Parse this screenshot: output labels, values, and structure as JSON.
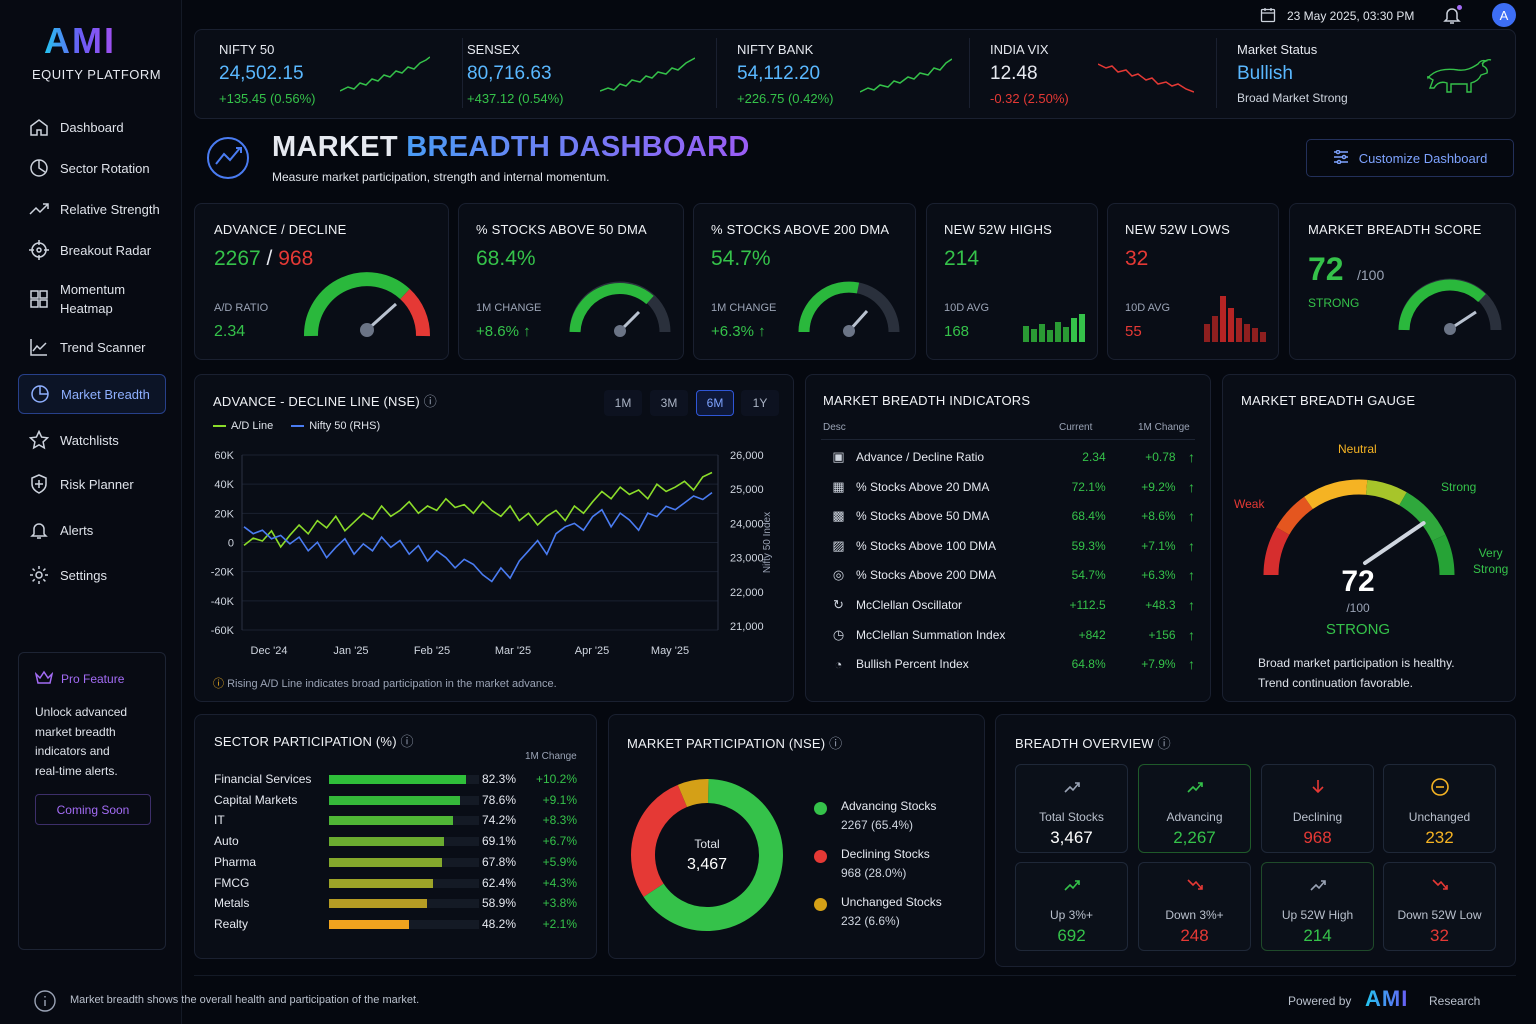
{
  "brand": {
    "logo": "AMI",
    "subtitle": "EQUITY PLATFORM"
  },
  "topbar": {
    "datetime": "23 May 2025, 03:30 PM",
    "avatar": "A"
  },
  "sidebar": {
    "items": [
      {
        "label": "Dashboard"
      },
      {
        "label": "Sector Rotation"
      },
      {
        "label": "Relative Strength"
      },
      {
        "label": "Breakout Radar"
      },
      {
        "label": "Momentum"
      },
      {
        "label": "Trend Scanner"
      },
      {
        "label": "Market Breadth"
      },
      {
        "label": "Watchlists"
      },
      {
        "label": "Risk Planner"
      },
      {
        "label": "Alerts"
      },
      {
        "label": "Settings"
      }
    ],
    "momentum_line2": "Heatmap",
    "pro": {
      "title": "Pro Feature",
      "line1": "Unlock advanced",
      "line2": "market breadth",
      "line3": "indicators and",
      "line4": "real-time alerts.",
      "button": "Coming Soon"
    }
  },
  "ticker": [
    {
      "name": "NIFTY 50",
      "value": "24,502.15",
      "change": "+135.45 (0.56%)"
    },
    {
      "name": "SENSEX",
      "value": "80,716.63",
      "change": "+437.12 (0.54%)"
    },
    {
      "name": "NIFTY BANK",
      "value": "54,112.20",
      "change": "+226.75 (0.42%)"
    },
    {
      "name": "INDIA VIX",
      "value": "12.48",
      "change": "-0.32 (2.50%)"
    }
  ],
  "market_status": {
    "label": "Market Status",
    "value": "Bullish",
    "note": "Broad Market Strong"
  },
  "header": {
    "title_part1": "MARKET",
    "title_part2": "BREADTH DASHBOARD",
    "subtitle": "Measure market participation, strength and internal momentum.",
    "customize": "Customize Dashboard"
  },
  "kpis": {
    "ad": {
      "title": "ADVANCE / DECLINE",
      "adv": "2267",
      "sep": " / ",
      "dec": "968",
      "ratio_label": "A/D RATIO",
      "ratio": "2.34"
    },
    "dma50": {
      "title": "% STOCKS ABOVE 50 DMA",
      "value": "68.4%",
      "chg_label": "1M CHANGE",
      "chg": "+8.6%"
    },
    "dma200": {
      "title": "% STOCKS ABOVE 200 DMA",
      "value": "54.7%",
      "chg_label": "1M CHANGE",
      "chg": "+6.3%"
    },
    "highs": {
      "title": "NEW 52W HIGHS",
      "value": "214",
      "avg_label": "10D AVG",
      "avg": "168"
    },
    "lows": {
      "title": "NEW 52W LOWS",
      "value": "32",
      "avg_label": "10D AVG",
      "avg": "55"
    },
    "score": {
      "title": "MARKET BREADTH SCORE",
      "value": "72",
      "of": "/100",
      "label": "STRONG"
    }
  },
  "adline": {
    "title": "ADVANCE - DECLINE LINE (NSE)",
    "ranges": [
      "1M",
      "3M",
      "6M",
      "1Y"
    ],
    "active_range": "6M",
    "note": "Rising A/D Line indicates broad participation in the market advance."
  },
  "chart_data": {
    "type": "line",
    "xlabel": "",
    "ylabel": "",
    "y2label": "Nifty 50 Index",
    "x_ticks": [
      "Dec '24",
      "Jan '25",
      "Feb '25",
      "Mar '25",
      "Apr '25",
      "May '25"
    ],
    "y_ticks": [
      "60K",
      "40K",
      "20K",
      "0",
      "-20K",
      "-40K",
      "-60K"
    ],
    "y2_ticks": [
      "26,000",
      "25,000",
      "24,000",
      "23,000",
      "22,000",
      "21,000"
    ],
    "ylim": [
      -60000,
      60000
    ],
    "y2lim": [
      21000,
      26000
    ],
    "series": [
      {
        "name": "A/D Line",
        "color": "#8bdc2a",
        "axis": "left",
        "values": [
          -2000,
          3000,
          1000,
          8000,
          -3000,
          5000,
          12000,
          6000,
          15000,
          10000,
          18000,
          8000,
          14000,
          20000,
          16000,
          25000,
          18000,
          22000,
          28000,
          20000,
          25000,
          22000,
          30000,
          24000,
          26000,
          20000,
          28000,
          22000,
          18000,
          25000,
          15000,
          20000,
          12000,
          18000,
          22000,
          15000,
          25000,
          20000,
          28000,
          35000,
          30000,
          38000,
          33000,
          36000,
          30000,
          40000,
          35000,
          38000,
          42000,
          36000,
          45000,
          48000
        ]
      },
      {
        "name": "Nifty 50 (RHS)",
        "color": "#4a7cf2",
        "axis": "right",
        "values": [
          23900,
          23700,
          23800,
          23550,
          23650,
          23400,
          23600,
          23200,
          23450,
          23000,
          23300,
          23550,
          23100,
          23400,
          23200,
          23600,
          23300,
          23500,
          23100,
          23350,
          22900,
          23200,
          23000,
          22700,
          22950,
          22800,
          22500,
          22300,
          22700,
          22400,
          22900,
          23200,
          23500,
          23100,
          23700,
          23900,
          24000,
          23800,
          24200,
          24400,
          23900,
          24300,
          24100,
          23800,
          24300,
          24200,
          24500,
          24400,
          24600,
          24800,
          24700,
          24900
        ]
      }
    ]
  },
  "indicators": {
    "title": "MARKET BREADTH INDICATORS",
    "col0": "Desc",
    "col1": "Current",
    "col2": "1M Change",
    "rows": [
      {
        "name": "Advance / Decline Ratio",
        "current": "2.34",
        "change": "+0.78"
      },
      {
        "name": "% Stocks Above 20 DMA",
        "current": "72.1%",
        "change": "+9.2%"
      },
      {
        "name": "% Stocks Above 50 DMA",
        "current": "68.4%",
        "change": "+8.6%"
      },
      {
        "name": "% Stocks Above 100 DMA",
        "current": "59.3%",
        "change": "+7.1%"
      },
      {
        "name": "% Stocks Above 200 DMA",
        "current": "54.7%",
        "change": "+6.3%"
      },
      {
        "name": "McClellan Oscillator",
        "current": "+112.5",
        "change": "+48.3"
      },
      {
        "name": "McClellan Summation Index",
        "current": "+842",
        "change": "+156"
      },
      {
        "name": "Bullish Percent Index",
        "current": "64.8%",
        "change": "+7.9%"
      }
    ]
  },
  "gauge": {
    "title": "MARKET BREADTH GAUGE",
    "weak": "Weak",
    "neutral": "Neutral",
    "strong": "Strong",
    "very": "Very",
    "very2": "Strong",
    "value": "72",
    "of": "/100",
    "label": "STRONG",
    "score": 72,
    "note1": "Broad market participation is healthy.",
    "note2": "Trend continuation favorable."
  },
  "sectors": {
    "title": "SECTOR PARTICIPATION (%)",
    "chg_header": "1M Change",
    "rows": [
      {
        "name": "Financial Services",
        "value": "82.3%",
        "change": "+10.2%",
        "pct": 82.3,
        "color": "#2fbf3a"
      },
      {
        "name": "Capital Markets",
        "value": "78.6%",
        "change": "+9.1%",
        "pct": 78.6,
        "color": "#35b83a"
      },
      {
        "name": "IT",
        "value": "74.2%",
        "change": "+8.3%",
        "pct": 74.2,
        "color": "#4fb636"
      },
      {
        "name": "Auto",
        "value": "69.1%",
        "change": "+6.7%",
        "pct": 69.1,
        "color": "#6aab30"
      },
      {
        "name": "Pharma",
        "value": "67.8%",
        "change": "+5.9%",
        "pct": 67.8,
        "color": "#84a82c"
      },
      {
        "name": "FMCG",
        "value": "62.4%",
        "change": "+4.3%",
        "pct": 62.4,
        "color": "#9da428"
      },
      {
        "name": "Metals",
        "value": "58.9%",
        "change": "+3.8%",
        "pct": 58.9,
        "color": "#b59c24"
      },
      {
        "name": "Realty",
        "value": "48.2%",
        "change": "+2.1%",
        "pct": 48.2,
        "color": "#f0a31e"
      }
    ]
  },
  "participation": {
    "title": "MARKET PARTICIPATION (NSE)",
    "total_label": "Total",
    "total": "3,467",
    "legend": [
      {
        "name": "Advancing Stocks",
        "detail": "2267 (65.4%)",
        "value": 65.4,
        "color": "#35c24a"
      },
      {
        "name": "Declining Stocks",
        "detail": "968 (28.0%)",
        "value": 28.0,
        "color": "#e53935"
      },
      {
        "name": "Unchanged Stocks",
        "detail": "232 (6.6%)",
        "value": 6.6,
        "color": "#d4a017"
      }
    ]
  },
  "overview": {
    "title": "BREADTH OVERVIEW",
    "tiles": [
      {
        "label": "Total Stocks",
        "value": "3,467"
      },
      {
        "label": "Advancing",
        "value": "2,267"
      },
      {
        "label": "Declining",
        "value": "968"
      },
      {
        "label": "Unchanged",
        "value": "232"
      },
      {
        "label": "Up 3%+",
        "value": "692"
      },
      {
        "label": "Down 3%+",
        "value": "248"
      },
      {
        "label": "Up 52W High",
        "value": "214"
      },
      {
        "label": "Down 52W Low",
        "value": "32"
      }
    ]
  },
  "footer": {
    "note": "Market breadth shows the overall health and participation of the market.",
    "powered": "Powered by",
    "brand": "AMI",
    "research": "Research"
  },
  "colors": {
    "green": "#35c24a",
    "red": "#e53935",
    "blue": "#5ab8ff",
    "yellow": "#f5b323",
    "purple": "#a36cf5"
  }
}
